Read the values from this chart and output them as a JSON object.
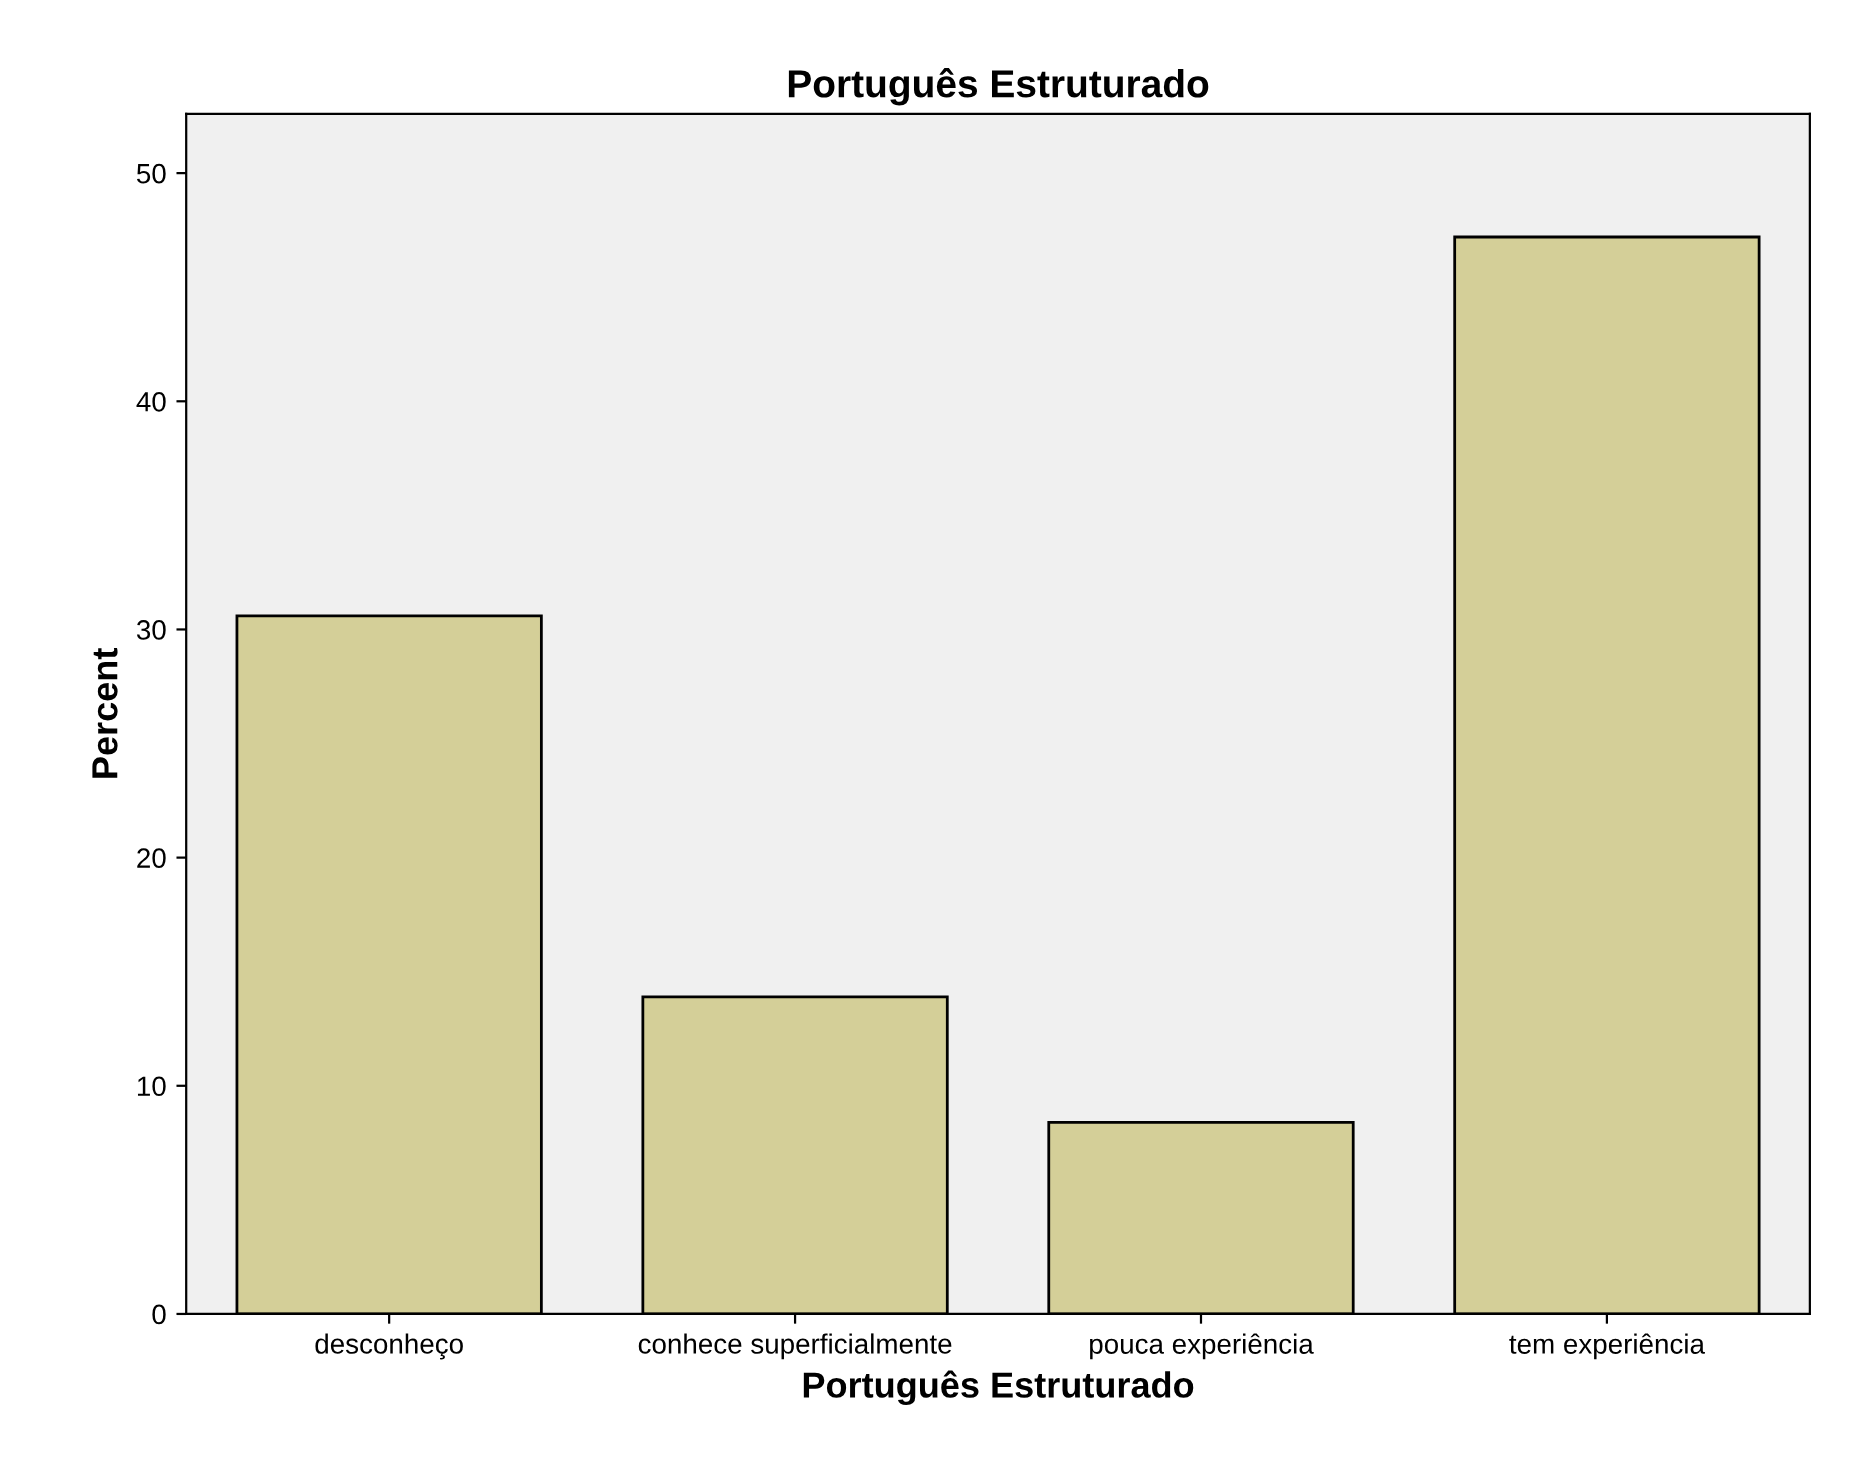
{
  "chart_data": {
    "type": "bar",
    "title": "Português Estruturado",
    "xlabel": "Português Estruturado",
    "ylabel": "Percent",
    "categories": [
      "desconheço",
      "conhece superficialmente",
      "pouca experiência",
      "tem experiência"
    ],
    "values": [
      30.6,
      13.9,
      8.4,
      47.2
    ],
    "color": "#d4cf98",
    "ylim": [
      0,
      52.6
    ],
    "yticks": [
      0,
      10,
      20,
      30,
      40,
      50
    ],
    "grid": false
  }
}
